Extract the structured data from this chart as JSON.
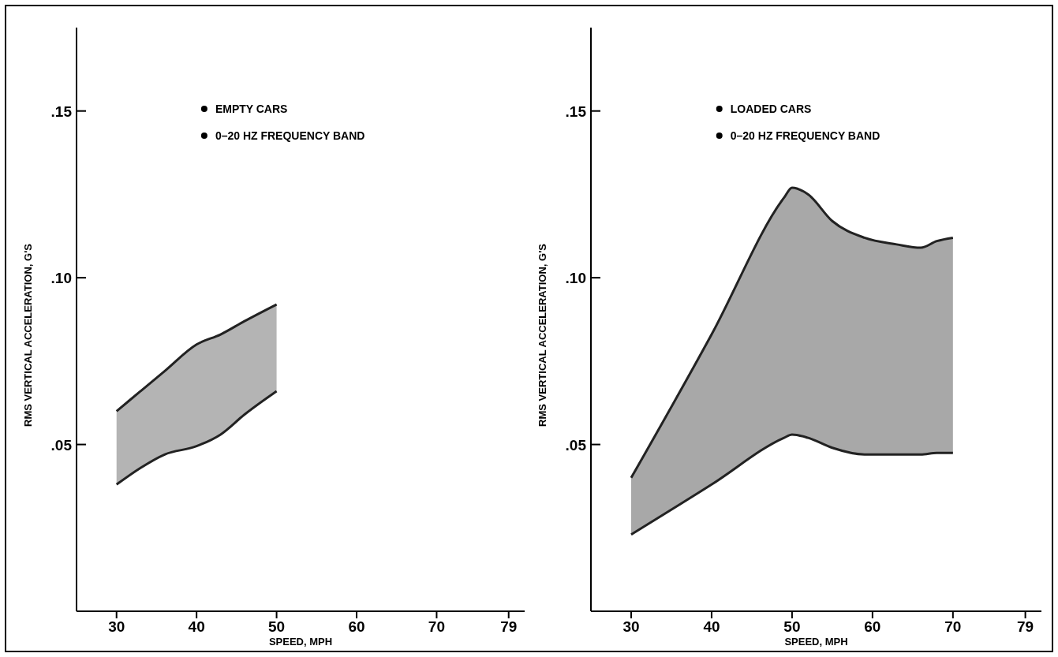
{
  "chart_data": [
    {
      "type": "area",
      "xlabel": "SPEED, MPH",
      "ylabel": "RMS VERTICAL ACCELERATION, G'S",
      "annotations": [
        "EMPTY CARS",
        "0–20 HZ FREQUENCY BAND"
      ],
      "xlim": [
        25,
        81
      ],
      "xticks": [
        30,
        40,
        50,
        60,
        70,
        79
      ],
      "ylim": [
        0,
        0.175
      ],
      "yticks": [
        {
          "value": 0.05,
          "label": ".05"
        },
        {
          "value": 0.1,
          "label": ".10"
        },
        {
          "value": 0.15,
          "label": ".15"
        }
      ],
      "series": [
        {
          "color": "#b4b4b4",
          "x": [
            30,
            33,
            36,
            40,
            43,
            46,
            50
          ],
          "values": [
            null,
            null,
            null,
            null,
            null,
            null,
            null
          ],
          "upper": [
            0.06,
            0.066,
            0.072,
            0.08,
            0.083,
            0.087,
            0.092
          ],
          "lower": [
            0.038,
            0.043,
            0.047,
            0.0495,
            0.053,
            0.059,
            0.066
          ]
        },
        {
          "type": "line",
          "color": "#222222",
          "x": [
            30,
            33,
            36,
            40,
            43,
            46,
            50
          ],
          "values": [
            0.06,
            0.066,
            0.072,
            0.08,
            0.083,
            0.087,
            0.092
          ]
        },
        {
          "type": "line",
          "color": "#222222",
          "x": [
            30,
            33,
            36,
            40,
            43,
            46,
            50
          ],
          "values": [
            0.038,
            0.043,
            0.047,
            0.0495,
            0.053,
            0.059,
            0.066
          ]
        }
      ]
    },
    {
      "type": "area",
      "xlabel": "SPEED, MPH",
      "ylabel": "RMS VERTICAL ACCELERATION, G'S",
      "annotations": [
        "LOADED CARS",
        "0–20 HZ FREQUENCY BAND"
      ],
      "xlim": [
        25,
        81
      ],
      "xticks": [
        30,
        40,
        50,
        60,
        70,
        79
      ],
      "ylim": [
        0,
        0.175
      ],
      "yticks": [
        {
          "value": 0.05,
          "label": ".05"
        },
        {
          "value": 0.1,
          "label": ".10"
        },
        {
          "value": 0.15,
          "label": ".15"
        }
      ],
      "series": [
        {
          "color": "#a8a8a8",
          "x": [
            30,
            40,
            49,
            50,
            52,
            55,
            59,
            63,
            66,
            68,
            70
          ],
          "values": [
            null,
            null,
            null,
            null,
            null,
            null,
            null,
            null,
            null,
            null,
            null
          ],
          "upper": [
            0.04,
            0.083,
            0.124,
            0.127,
            0.125,
            0.117,
            0.112,
            0.11,
            0.109,
            0.111,
            0.112
          ],
          "lower": [
            0.023,
            0.038,
            0.052,
            0.053,
            0.052,
            0.049,
            0.047,
            0.047,
            0.047,
            0.0475,
            0.0475
          ]
        },
        {
          "type": "line",
          "color": "#222222",
          "x": [
            30,
            40,
            49,
            50,
            52,
            55,
            59,
            63,
            66,
            68,
            70
          ],
          "values": [
            0.04,
            0.083,
            0.124,
            0.127,
            0.125,
            0.117,
            0.112,
            0.11,
            0.109,
            0.111,
            0.112
          ]
        },
        {
          "type": "line",
          "color": "#222222",
          "x": [
            30,
            40,
            49,
            50,
            52,
            55,
            59,
            63,
            66,
            68,
            70
          ],
          "values": [
            0.023,
            0.038,
            0.052,
            0.053,
            0.052,
            0.049,
            0.047,
            0.047,
            0.047,
            0.0475,
            0.0475
          ]
        }
      ]
    }
  ]
}
